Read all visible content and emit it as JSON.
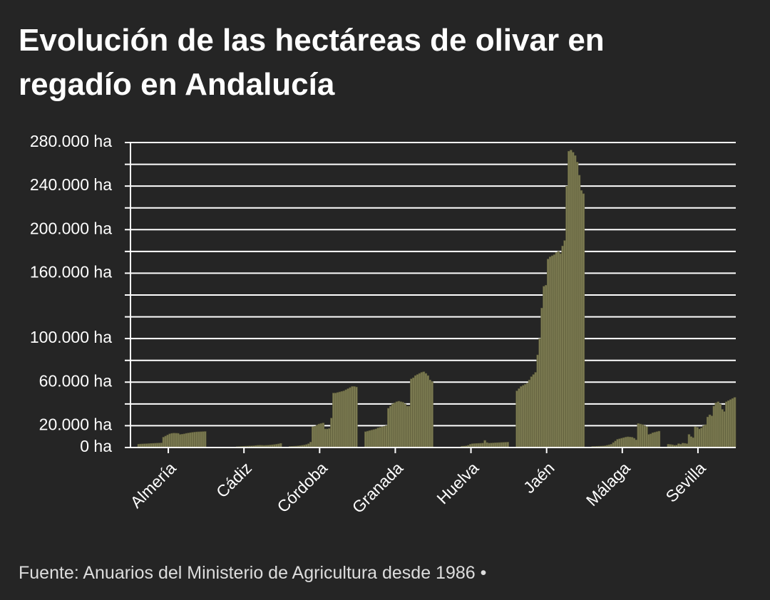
{
  "chart_data": {
    "type": "bar",
    "title": "Evolución de las hectáreas de olivar en regadío en Andalucía",
    "source": "Fuente: Anuarios del Ministerio de Agricultura desde 1986 •",
    "categories": [
      "Almería",
      "Cádiz",
      "Córdoba",
      "Granada",
      "Huelva",
      "Jaén",
      "Málaga",
      "Sevilla"
    ],
    "values": [
      [
        3000,
        3200,
        3300,
        3400,
        3500,
        3600,
        3700,
        3800,
        3900,
        4000,
        4100,
        4200,
        9500,
        10500,
        11500,
        12500,
        13000,
        13200,
        13100,
        13000,
        12000,
        12200,
        12500,
        13000,
        13300,
        13600,
        13900,
        14100,
        14300,
        14400,
        14500,
        14600,
        14700
      ],
      [
        null,
        null,
        null,
        null,
        null,
        null,
        null,
        null,
        null,
        null,
        null,
        800,
        900,
        1000,
        1100,
        1200,
        1300,
        1400,
        1500,
        1600,
        1800,
        2000,
        2100,
        2000,
        1900,
        2000,
        2100,
        2300,
        2500,
        2700,
        3000,
        3300,
        3800
      ],
      [
        1000,
        1100,
        1200,
        1300,
        1500,
        1700,
        2000,
        2300,
        2800,
        3500,
        5000,
        19000,
        19500,
        20500,
        21500,
        22000,
        22500,
        17000,
        17000,
        17500,
        27000,
        50000,
        50000,
        50500,
        51000,
        51500,
        52000,
        53000,
        54000,
        55000,
        56000,
        56000,
        55500
      ],
      [
        14500,
        15000,
        15500,
        16000,
        16500,
        17000,
        18000,
        18500,
        19000,
        19500,
        20000,
        36000,
        38000,
        40000,
        41000,
        42000,
        42500,
        42000,
        41500,
        40000,
        38000,
        38000,
        63000,
        64000,
        66000,
        67000,
        68000,
        69000,
        69500,
        68000,
        66000,
        62000,
        60500
      ],
      [
        null,
        null,
        null,
        null,
        null,
        null,
        null,
        null,
        null,
        null,
        1200,
        1300,
        1500,
        2000,
        3000,
        3500,
        3600,
        3700,
        3800,
        3900,
        4000,
        6500,
        4500,
        4000,
        4100,
        4200,
        4300,
        4400,
        4500,
        4600,
        4700,
        4800,
        4900
      ],
      [
        52000,
        54000,
        56000,
        57000,
        58000,
        59000,
        62000,
        65000,
        67000,
        69000,
        85000,
        100000,
        128000,
        148000,
        149000,
        173000,
        175000,
        176000,
        177000,
        179000,
        180000,
        178000,
        185000,
        190000,
        240000,
        272000,
        273000,
        271000,
        268000,
        262000,
        250000,
        236000,
        233000
      ],
      [
        1000,
        1000,
        1100,
        1200,
        1300,
        1400,
        1600,
        2000,
        2500,
        3000,
        4500,
        6000,
        7500,
        8000,
        8500,
        9000,
        9500,
        9800,
        9600,
        9400,
        8500,
        7000,
        22000,
        21500,
        21000,
        20000,
        19000,
        12000,
        12500,
        13500,
        14000,
        14500,
        15000
      ],
      [
        3000,
        2800,
        2500,
        2000,
        2200,
        3500,
        3000,
        4000,
        3800,
        3500,
        12000,
        10000,
        9000,
        19000,
        18500,
        17000,
        18000,
        20000,
        21000,
        28000,
        30000,
        29000,
        38000,
        41000,
        42000,
        40000,
        35000,
        33000,
        42000,
        43000,
        44000,
        45000,
        46000
      ]
    ],
    "color": "#7a7950",
    "ylim": [
      0,
      280000
    ],
    "yticks": [
      {
        "value": 0,
        "label": "0 ha"
      },
      {
        "value": 20000,
        "label": "20.000 ha"
      },
      {
        "value": 40000,
        "label": null
      },
      {
        "value": 60000,
        "label": "60.000 ha"
      },
      {
        "value": 80000,
        "label": null
      },
      {
        "value": 100000,
        "label": "100.000 ha"
      },
      {
        "value": 120000,
        "label": null
      },
      {
        "value": 140000,
        "label": null
      },
      {
        "value": 160000,
        "label": "160.000 ha"
      },
      {
        "value": 180000,
        "label": null
      },
      {
        "value": 200000,
        "label": "200.000 ha"
      },
      {
        "value": 220000,
        "label": null
      },
      {
        "value": 240000,
        "label": "240.000 ha"
      },
      {
        "value": 260000,
        "label": null
      },
      {
        "value": 280000,
        "label": "280.000 ha"
      }
    ],
    "grid": true
  }
}
